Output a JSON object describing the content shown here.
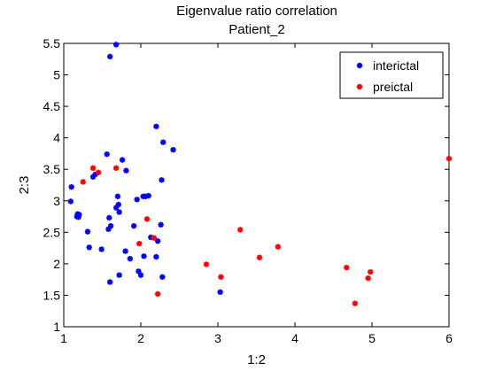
{
  "chart_data": {
    "type": "scatter",
    "title": "Eigenvalue ratio correlation",
    "subtitle": "Patient_2",
    "xlabel": "1:2",
    "ylabel": "2:3",
    "xlim": [
      1,
      6
    ],
    "ylim": [
      1,
      5.5
    ],
    "xticks": [
      "1",
      "2",
      "3",
      "4",
      "5",
      "6"
    ],
    "yticks": [
      "1",
      "1.5",
      "2",
      "2.5",
      "3",
      "3.5",
      "4",
      "4.5",
      "5",
      "5.5"
    ],
    "grid": false,
    "legend_position": "top-right",
    "series": [
      {
        "name": "interictal",
        "color": "#0000ff",
        "points": [
          [
            1.09,
            2.99
          ],
          [
            1.1,
            3.22
          ],
          [
            1.17,
            2.75
          ],
          [
            1.18,
            2.79
          ],
          [
            1.19,
            2.74
          ],
          [
            1.2,
            2.78
          ],
          [
            1.31,
            2.51
          ],
          [
            1.33,
            2.26
          ],
          [
            1.38,
            3.38
          ],
          [
            1.41,
            3.42
          ],
          [
            1.49,
            2.23
          ],
          [
            1.56,
            3.74
          ],
          [
            1.58,
            2.55
          ],
          [
            1.59,
            2.73
          ],
          [
            1.6,
            5.29
          ],
          [
            1.6,
            1.71
          ],
          [
            1.61,
            2.6
          ],
          [
            1.68,
            5.48
          ],
          [
            1.68,
            2.89
          ],
          [
            1.7,
            3.07
          ],
          [
            1.71,
            2.94
          ],
          [
            1.72,
            2.82
          ],
          [
            1.72,
            1.82
          ],
          [
            1.76,
            3.65
          ],
          [
            1.8,
            2.2
          ],
          [
            1.81,
            3.48
          ],
          [
            1.86,
            2.08
          ],
          [
            1.91,
            2.6
          ],
          [
            1.95,
            3.02
          ],
          [
            1.97,
            1.88
          ],
          [
            2.0,
            1.82
          ],
          [
            2.03,
            3.07
          ],
          [
            2.04,
            2.12
          ],
          [
            2.06,
            3.07
          ],
          [
            2.1,
            3.08
          ],
          [
            2.13,
            2.42
          ],
          [
            2.2,
            4.18
          ],
          [
            2.2,
            2.11
          ],
          [
            2.22,
            2.36
          ],
          [
            2.26,
            2.62
          ],
          [
            2.27,
            3.33
          ],
          [
            2.28,
            1.79
          ],
          [
            2.29,
            3.93
          ],
          [
            2.42,
            3.81
          ],
          [
            3.03,
            1.55
          ]
        ]
      },
      {
        "name": "preictal",
        "color": "#ff0000",
        "points": [
          [
            1.25,
            3.3
          ],
          [
            1.38,
            3.52
          ],
          [
            1.45,
            3.45
          ],
          [
            1.68,
            3.52
          ],
          [
            1.98,
            2.32
          ],
          [
            2.08,
            2.71
          ],
          [
            2.17,
            2.41
          ],
          [
            2.22,
            1.52
          ],
          [
            2.85,
            1.99
          ],
          [
            3.04,
            1.79
          ],
          [
            3.29,
            2.54
          ],
          [
            3.54,
            2.1
          ],
          [
            3.78,
            2.27
          ],
          [
            4.67,
            1.94
          ],
          [
            4.78,
            1.37
          ],
          [
            4.95,
            1.77
          ],
          [
            4.98,
            1.87
          ],
          [
            6.0,
            3.67
          ]
        ]
      }
    ]
  }
}
